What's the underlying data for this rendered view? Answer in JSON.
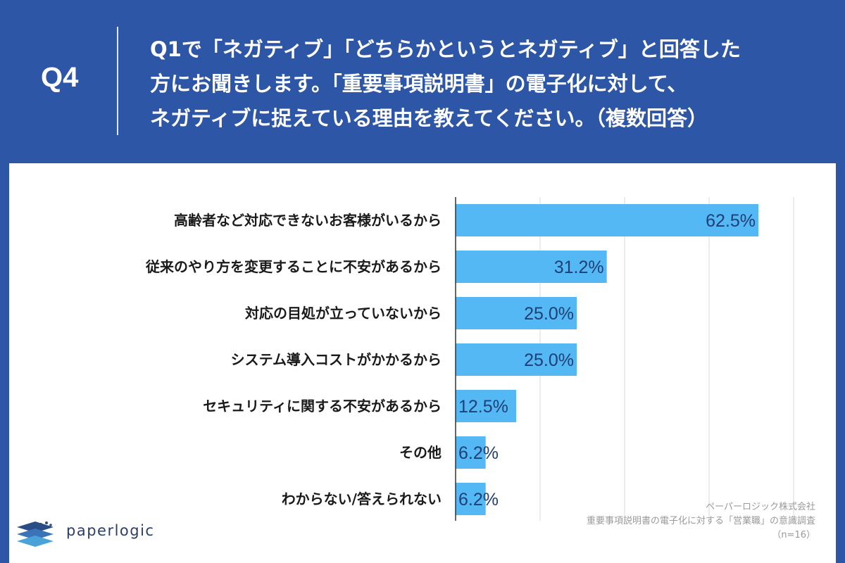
{
  "header": {
    "q_label": "Q4",
    "question_lines": [
      "Q1で「ネガティブ」「どちらかというとネガティブ」と回答した",
      "方にお聞きします。「重要事項説明書」の電子化に対して、",
      "ネガティブに捉えている理由を教えてください。（複数回答）"
    ]
  },
  "source": {
    "company": "ペーパーロジック株式会社",
    "survey": "重要事項説明書の電子化に対する「営業職」の意識調査",
    "sample": "（n=16）"
  },
  "logo": {
    "text": "paperlogic"
  },
  "colors": {
    "header_bg": "#2e56a6",
    "bar": "#54b8f5",
    "value_text": "#1f3f75",
    "grid": "#d9d9d9"
  },
  "chart_data": {
    "type": "bar",
    "orientation": "horizontal",
    "categories": [
      "高齢者など対応できないお客様がいるから",
      "従来のやり方を変更することに不安があるから",
      "対応の目処が立っていないから",
      "システム導入コストがかかるから",
      "セキュリティに関する不安があるから",
      "その他",
      "わからない/答えられない"
    ],
    "values": [
      62.5,
      31.2,
      25.0,
      25.0,
      12.5,
      6.2,
      6.2
    ],
    "value_labels": [
      "62.5%",
      "31.2%",
      "25.0%",
      "25.0%",
      "12.5%",
      "6.2%",
      "6.2%"
    ],
    "xlim": [
      0,
      70
    ],
    "grid": true
  }
}
